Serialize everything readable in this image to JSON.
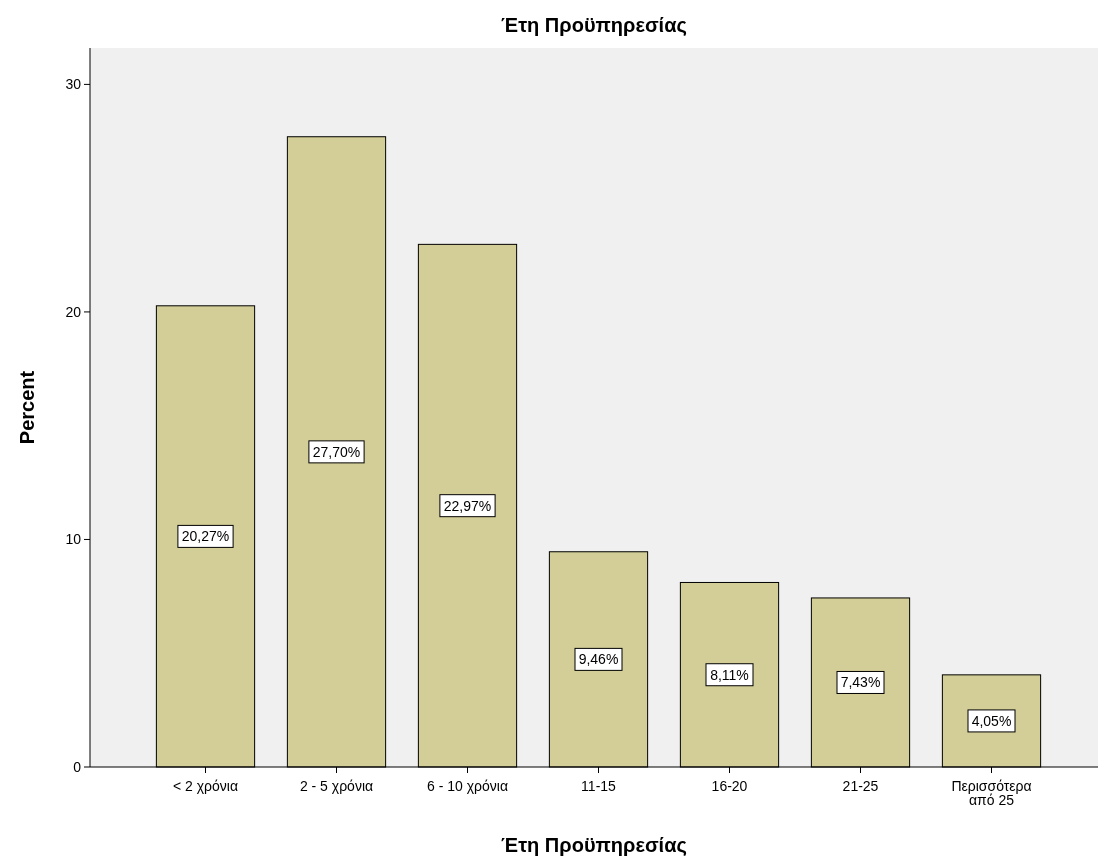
{
  "chart_data": {
    "type": "bar",
    "title": "Έτη Προϋπηρεσίας",
    "xlabel": "Έτη Προϋπηρεσίας",
    "ylabel": "Percent",
    "categories": [
      "< 2 χρόνια",
      "2 - 5 χρόνια",
      "6 - 10 χρόνια",
      "11-15",
      "16-20",
      "21-25",
      "Περισσότερα από 25"
    ],
    "values": [
      20.27,
      27.7,
      22.97,
      9.46,
      8.11,
      7.43,
      4.05
    ],
    "value_labels": [
      "20,27%",
      "27,70%",
      "22,97%",
      "9,46%",
      "8,11%",
      "7,43%",
      "4,05%"
    ],
    "color": "#d3ce97",
    "ylim": [
      0,
      31.6
    ],
    "yticks": [
      0,
      10,
      20,
      30
    ],
    "grid": false
  }
}
